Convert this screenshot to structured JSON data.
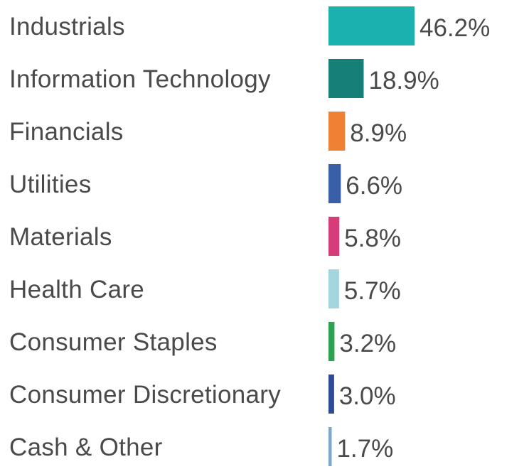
{
  "chart_data": {
    "type": "bar",
    "orientation": "horizontal",
    "categories": [
      "Industrials",
      "Information Technology",
      "Financials",
      "Utilities",
      "Materials",
      "Health Care",
      "Consumer Staples",
      "Consumer Discretionary",
      "Cash & Other"
    ],
    "values": [
      46.2,
      18.9,
      8.9,
      6.6,
      5.8,
      5.7,
      3.2,
      3.0,
      1.7
    ],
    "value_labels": [
      "46.2%",
      "18.9%",
      "8.9%",
      "6.6%",
      "5.8%",
      "5.7%",
      "3.2%",
      "3.0%",
      "1.7%"
    ],
    "colors": [
      "#1bb1ae",
      "#157f78",
      "#ef8135",
      "#3a5fa9",
      "#d63c7a",
      "#a3d6df",
      "#2ea34f",
      "#2d4b97",
      "#7fa8cf"
    ],
    "title": "",
    "xlabel": "",
    "ylabel": "",
    "xlim": [
      0,
      46.2
    ],
    "grid": false,
    "legend": "none"
  }
}
